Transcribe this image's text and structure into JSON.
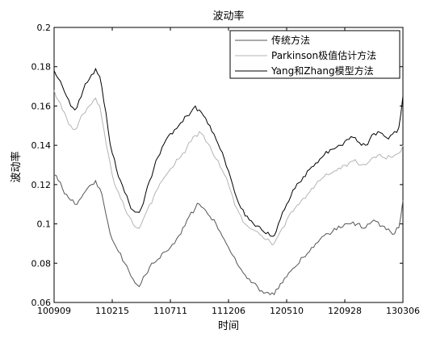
{
  "chart_data": {
    "type": "line",
    "title": "波动率",
    "xlabel": "时间",
    "ylabel": "波动率",
    "ylim": [
      0.06,
      0.2
    ],
    "yticks": [
      "0.06",
      "0.08",
      "0.1",
      "0.12",
      "0.14",
      "0.16",
      "0.18",
      "0.2"
    ],
    "xticks": [
      "100909",
      "110215",
      "110711",
      "111206",
      "120510",
      "120928",
      "130306"
    ],
    "grid": false,
    "legend_position": "top-right",
    "series": [
      {
        "name": "传统方法",
        "color": "#555555",
        "x": [
          0,
          5,
          10,
          15,
          20,
          25,
          30,
          35,
          40,
          45,
          50,
          55,
          60,
          65,
          70,
          75,
          80,
          85,
          90,
          95,
          100,
          105,
          110,
          115,
          120,
          125,
          130,
          135,
          140,
          145,
          150,
          155,
          160,
          165,
          170,
          175,
          180,
          185,
          190,
          195,
          200,
          205,
          210,
          215,
          220,
          225,
          230,
          235,
          240,
          245,
          250,
          255,
          260,
          265,
          270,
          275,
          280,
          285,
          290,
          295,
          300,
          305,
          310,
          315,
          320,
          325,
          330,
          335,
          340,
          345,
          350,
          355,
          360,
          365,
          370,
          375,
          380,
          385,
          390,
          395,
          400,
          405,
          410,
          415,
          420
        ],
        "values": [
          0.125,
          0.122,
          0.118,
          0.115,
          0.112,
          0.11,
          0.112,
          0.115,
          0.118,
          0.12,
          0.122,
          0.118,
          0.11,
          0.1,
          0.092,
          0.088,
          0.085,
          0.08,
          0.076,
          0.072,
          0.069,
          0.07,
          0.074,
          0.078,
          0.08,
          0.082,
          0.085,
          0.086,
          0.088,
          0.09,
          0.094,
          0.098,
          0.102,
          0.106,
          0.108,
          0.11,
          0.108,
          0.105,
          0.102,
          0.1,
          0.096,
          0.092,
          0.088,
          0.084,
          0.08,
          0.077,
          0.074,
          0.072,
          0.07,
          0.068,
          0.066,
          0.065,
          0.064,
          0.064,
          0.067,
          0.07,
          0.073,
          0.076,
          0.078,
          0.08,
          0.083,
          0.085,
          0.088,
          0.09,
          0.092,
          0.094,
          0.095,
          0.096,
          0.097,
          0.098,
          0.1,
          0.1,
          0.101,
          0.1,
          0.098,
          0.098,
          0.1,
          0.102,
          0.101,
          0.099,
          0.097,
          0.096,
          0.095,
          0.098,
          0.112
        ]
      },
      {
        "name": "Parkinson极值估计方法",
        "color": "#b4b4b4",
        "x": [
          0,
          5,
          10,
          15,
          20,
          25,
          30,
          35,
          40,
          45,
          50,
          55,
          60,
          65,
          70,
          75,
          80,
          85,
          90,
          95,
          100,
          105,
          110,
          115,
          120,
          125,
          130,
          135,
          140,
          145,
          150,
          155,
          160,
          165,
          170,
          175,
          180,
          185,
          190,
          195,
          200,
          205,
          210,
          215,
          220,
          225,
          230,
          235,
          240,
          245,
          250,
          255,
          260,
          265,
          270,
          275,
          280,
          285,
          290,
          295,
          300,
          305,
          310,
          315,
          320,
          325,
          330,
          335,
          340,
          345,
          350,
          355,
          360,
          365,
          370,
          375,
          380,
          385,
          390,
          395,
          400,
          405,
          410,
          415,
          420
        ],
        "values": [
          0.168,
          0.163,
          0.158,
          0.154,
          0.15,
          0.148,
          0.152,
          0.156,
          0.159,
          0.161,
          0.164,
          0.16,
          0.148,
          0.136,
          0.125,
          0.118,
          0.113,
          0.108,
          0.104,
          0.1,
          0.098,
          0.1,
          0.105,
          0.11,
          0.114,
          0.118,
          0.122,
          0.125,
          0.128,
          0.13,
          0.133,
          0.136,
          0.139,
          0.142,
          0.145,
          0.147,
          0.145,
          0.141,
          0.137,
          0.133,
          0.129,
          0.125,
          0.12,
          0.114,
          0.108,
          0.104,
          0.1,
          0.098,
          0.097,
          0.096,
          0.094,
          0.092,
          0.091,
          0.09,
          0.094,
          0.098,
          0.102,
          0.106,
          0.108,
          0.11,
          0.113,
          0.115,
          0.118,
          0.12,
          0.122,
          0.124,
          0.125,
          0.126,
          0.127,
          0.128,
          0.13,
          0.131,
          0.132,
          0.131,
          0.13,
          0.13,
          0.132,
          0.134,
          0.135,
          0.134,
          0.133,
          0.134,
          0.135,
          0.136,
          0.14
        ]
      },
      {
        "name": "Yang和Zhang模型方法",
        "color": "#000000",
        "x": [
          0,
          5,
          10,
          15,
          20,
          25,
          30,
          35,
          40,
          45,
          50,
          55,
          60,
          65,
          70,
          75,
          80,
          85,
          90,
          95,
          100,
          105,
          110,
          115,
          120,
          125,
          130,
          135,
          140,
          145,
          150,
          155,
          160,
          165,
          170,
          175,
          180,
          185,
          190,
          195,
          200,
          205,
          210,
          215,
          220,
          225,
          230,
          235,
          240,
          245,
          250,
          255,
          260,
          265,
          270,
          275,
          280,
          285,
          290,
          295,
          300,
          305,
          310,
          315,
          320,
          325,
          330,
          335,
          340,
          345,
          350,
          355,
          360,
          365,
          370,
          375,
          380,
          385,
          390,
          395,
          400,
          405,
          410,
          415,
          420
        ],
        "values": [
          0.178,
          0.174,
          0.17,
          0.165,
          0.16,
          0.158,
          0.163,
          0.168,
          0.172,
          0.176,
          0.179,
          0.175,
          0.162,
          0.148,
          0.136,
          0.128,
          0.122,
          0.116,
          0.111,
          0.107,
          0.106,
          0.108,
          0.115,
          0.122,
          0.128,
          0.134,
          0.139,
          0.143,
          0.146,
          0.148,
          0.15,
          0.152,
          0.155,
          0.157,
          0.16,
          0.158,
          0.155,
          0.151,
          0.147,
          0.143,
          0.138,
          0.133,
          0.127,
          0.12,
          0.113,
          0.108,
          0.104,
          0.102,
          0.1,
          0.099,
          0.097,
          0.095,
          0.094,
          0.094,
          0.1,
          0.106,
          0.11,
          0.114,
          0.118,
          0.121,
          0.124,
          0.127,
          0.129,
          0.131,
          0.133,
          0.135,
          0.136,
          0.138,
          0.139,
          0.14,
          0.142,
          0.143,
          0.144,
          0.142,
          0.14,
          0.14,
          0.143,
          0.146,
          0.147,
          0.146,
          0.144,
          0.145,
          0.147,
          0.149,
          0.165
        ]
      }
    ]
  }
}
